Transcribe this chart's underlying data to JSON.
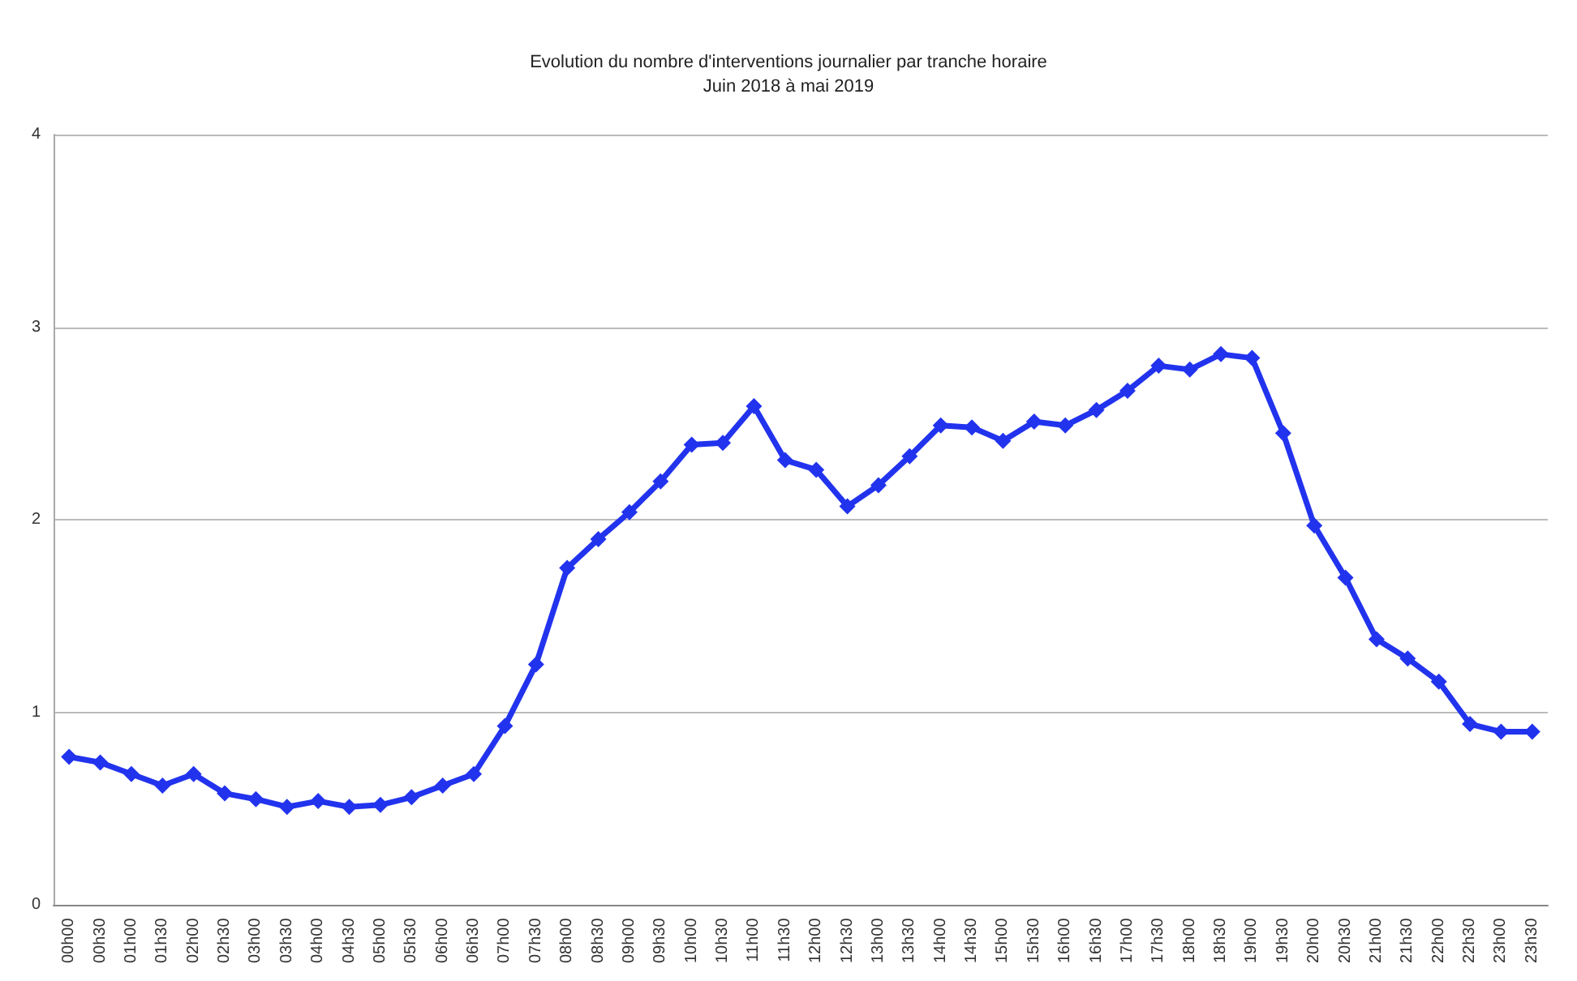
{
  "chart_data": {
    "type": "line",
    "title": "Evolution du nombre d'interventions journalier par tranche horaire",
    "subtitle": "Juin 2018 à mai 2019",
    "categories": [
      "00h00",
      "00h30",
      "01h00",
      "01h30",
      "02h00",
      "02h30",
      "03h00",
      "03h30",
      "04h00",
      "04h30",
      "05h00",
      "05h30",
      "06h00",
      "06h30",
      "07h00",
      "07h30",
      "08h00",
      "08h30",
      "09h00",
      "09h30",
      "10h00",
      "10h30",
      "11h00",
      "11h30",
      "12h00",
      "12h30",
      "13h00",
      "13h30",
      "14h00",
      "14h30",
      "15h00",
      "15h30",
      "16h00",
      "16h30",
      "17h00",
      "17h30",
      "18h00",
      "18h30",
      "19h00",
      "19h30",
      "20h00",
      "20h30",
      "21h00",
      "21h30",
      "22h00",
      "22h30",
      "23h00",
      "23h30"
    ],
    "series": [
      {
        "color": "#2233ee",
        "values": [
          0.77,
          0.74,
          0.68,
          0.62,
          0.68,
          0.58,
          0.55,
          0.51,
          0.54,
          0.51,
          0.52,
          0.56,
          0.62,
          0.68,
          0.93,
          1.25,
          1.75,
          1.9,
          2.04,
          2.2,
          2.39,
          2.4,
          2.59,
          2.31,
          2.26,
          2.07,
          2.18,
          2.33,
          2.49,
          2.48,
          2.41,
          2.51,
          2.49,
          2.57,
          2.67,
          2.8,
          2.78,
          2.86,
          2.84,
          2.45,
          1.97,
          1.7,
          1.38,
          1.28,
          1.16,
          0.94,
          0.9,
          0.9
        ]
      }
    ],
    "ylim": [
      0,
      4
    ],
    "yticks": [
      0,
      1,
      2,
      3,
      4
    ],
    "grid": "y",
    "marker": "diamond",
    "line_style": "solid"
  }
}
